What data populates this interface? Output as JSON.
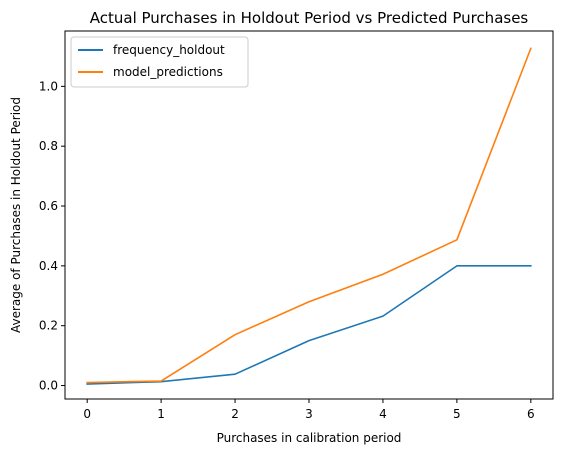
{
  "chart_data": {
    "type": "line",
    "title": "Actual Purchases in Holdout Period vs Predicted Purchases",
    "xlabel": "Purchases in calibration period",
    "ylabel": "Average of Purchases in Holdout Period",
    "x": [
      0,
      1,
      2,
      3,
      4,
      5,
      6
    ],
    "xlim": [
      -0.3,
      6.3
    ],
    "ylim": [
      -0.045,
      1.185
    ],
    "x_ticks": [
      0,
      1,
      2,
      3,
      4,
      5,
      6
    ],
    "y_ticks": [
      0.0,
      0.2,
      0.4,
      0.6,
      0.8,
      1.0
    ],
    "x_tick_labels": [
      "0",
      "1",
      "2",
      "3",
      "4",
      "5",
      "6"
    ],
    "y_tick_labels": [
      "0.0",
      "0.2",
      "0.4",
      "0.6",
      "0.8",
      "1.0"
    ],
    "grid": false,
    "legend_position": "top-left",
    "series": [
      {
        "name": "frequency_holdout",
        "color": "#1f77b4",
        "values": [
          0.005,
          0.013,
          0.038,
          0.15,
          0.232,
          0.4,
          0.4
        ]
      },
      {
        "name": "model_predictions",
        "color": "#ff7f0e",
        "values": [
          0.01,
          0.015,
          0.17,
          0.28,
          0.372,
          0.487,
          1.127
        ]
      }
    ]
  }
}
